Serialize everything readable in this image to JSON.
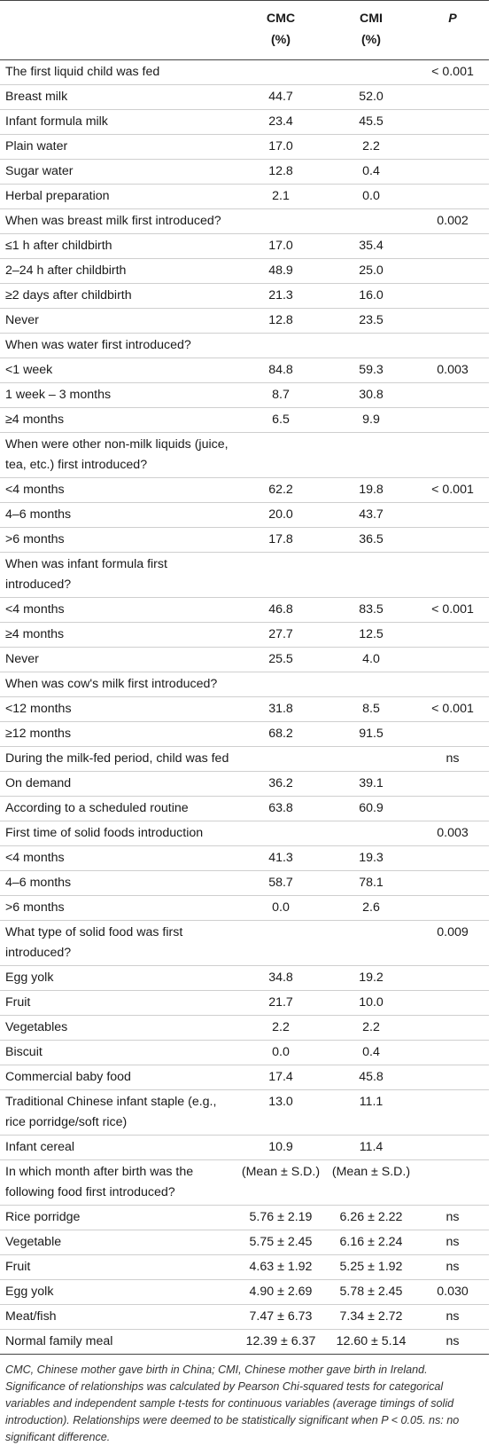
{
  "header": {
    "col_label": "",
    "cmc": "CMC",
    "cmc_unit": "(%)",
    "cmi": "CMI",
    "cmi_unit": "(%)",
    "p": "P"
  },
  "rows": [
    {
      "label": "The first liquid child was fed",
      "cmc": "",
      "cmi": "",
      "p": "< 0.001"
    },
    {
      "label": "Breast milk",
      "cmc": "44.7",
      "cmi": "52.0",
      "p": ""
    },
    {
      "label": "Infant formula milk",
      "cmc": "23.4",
      "cmi": "45.5",
      "p": ""
    },
    {
      "label": "Plain water",
      "cmc": "17.0",
      "cmi": "2.2",
      "p": ""
    },
    {
      "label": "Sugar water",
      "cmc": "12.8",
      "cmi": "0.4",
      "p": ""
    },
    {
      "label": "Herbal preparation",
      "cmc": "2.1",
      "cmi": "0.0",
      "p": ""
    },
    {
      "label": "When was breast milk first introduced?",
      "cmc": "",
      "cmi": "",
      "p": "0.002"
    },
    {
      "label": "≤1 h after childbirth",
      "cmc": "17.0",
      "cmi": "35.4",
      "p": ""
    },
    {
      "label": "2–24 h after childbirth",
      "cmc": "48.9",
      "cmi": "25.0",
      "p": ""
    },
    {
      "label": "≥2 days after childbirth",
      "cmc": "21.3",
      "cmi": "16.0",
      "p": ""
    },
    {
      "label": "Never",
      "cmc": "12.8",
      "cmi": "23.5",
      "p": ""
    },
    {
      "label": "When was water first introduced?",
      "cmc": "",
      "cmi": "",
      "p": ""
    },
    {
      "label": "<1 week",
      "cmc": "84.8",
      "cmi": "59.3",
      "p": "0.003"
    },
    {
      "label": "1 week – 3 months",
      "cmc": "8.7",
      "cmi": "30.8",
      "p": ""
    },
    {
      "label": "≥4 months",
      "cmc": "6.5",
      "cmi": "9.9",
      "p": ""
    },
    {
      "label": "When were other non-milk liquids (juice, tea, etc.) first introduced?",
      "cmc": "",
      "cmi": "",
      "p": ""
    },
    {
      "label": "<4 months",
      "cmc": "62.2",
      "cmi": "19.8",
      "p": "< 0.001"
    },
    {
      "label": "4–6 months",
      "cmc": "20.0",
      "cmi": "43.7",
      "p": ""
    },
    {
      "label": ">6 months",
      "cmc": "17.8",
      "cmi": "36.5",
      "p": ""
    },
    {
      "label": "When was infant formula first introduced?",
      "cmc": "",
      "cmi": "",
      "p": ""
    },
    {
      "label": "<4 months",
      "cmc": "46.8",
      "cmi": "83.5",
      "p": "< 0.001"
    },
    {
      "label": "≥4 months",
      "cmc": "27.7",
      "cmi": "12.5",
      "p": ""
    },
    {
      "label": "Never",
      "cmc": "25.5",
      "cmi": "4.0",
      "p": ""
    },
    {
      "label": "When was cow's milk first introduced?",
      "cmc": "",
      "cmi": "",
      "p": ""
    },
    {
      "label": "<12 months",
      "cmc": "31.8",
      "cmi": "8.5",
      "p": "< 0.001"
    },
    {
      "label": "≥12 months",
      "cmc": "68.2",
      "cmi": "91.5",
      "p": ""
    },
    {
      "label": "During the milk-fed period, child was fed",
      "cmc": "",
      "cmi": "",
      "p": "ns"
    },
    {
      "label": "On demand",
      "cmc": "36.2",
      "cmi": "39.1",
      "p": ""
    },
    {
      "label": "According to a scheduled routine",
      "cmc": "63.8",
      "cmi": "60.9",
      "p": ""
    },
    {
      "label": "First time of solid foods introduction",
      "cmc": "",
      "cmi": "",
      "p": "0.003"
    },
    {
      "label": "<4 months",
      "cmc": "41.3",
      "cmi": "19.3",
      "p": ""
    },
    {
      "label": "4–6 months",
      "cmc": "58.7",
      "cmi": "78.1",
      "p": ""
    },
    {
      "label": ">6 months",
      "cmc": "0.0",
      "cmi": "2.6",
      "p": ""
    },
    {
      "label": "What type of solid food was first introduced?",
      "cmc": "",
      "cmi": "",
      "p": "0.009"
    },
    {
      "label": "Egg yolk",
      "cmc": "34.8",
      "cmi": "19.2",
      "p": ""
    },
    {
      "label": "Fruit",
      "cmc": "21.7",
      "cmi": "10.0",
      "p": ""
    },
    {
      "label": "Vegetables",
      "cmc": "2.2",
      "cmi": "2.2",
      "p": ""
    },
    {
      "label": "Biscuit",
      "cmc": "0.0",
      "cmi": "0.4",
      "p": ""
    },
    {
      "label": "Commercial baby food",
      "cmc": "17.4",
      "cmi": "45.8",
      "p": ""
    },
    {
      "label": "Traditional Chinese infant staple (e.g., rice porridge/soft rice)",
      "cmc": "13.0",
      "cmi": "11.1",
      "p": ""
    },
    {
      "label": "Infant cereal",
      "cmc": "10.9",
      "cmi": "11.4",
      "p": ""
    },
    {
      "label": "In which month after birth was the following food first introduced?",
      "cmc": "(Mean ± S.D.)",
      "cmi": "(Mean ± S.D.)",
      "p": ""
    },
    {
      "label": "Rice porridge",
      "cmc": "5.76 ± 2.19",
      "cmi": "6.26 ± 2.22",
      "p": "ns"
    },
    {
      "label": "Vegetable",
      "cmc": "5.75 ± 2.45",
      "cmi": "6.16 ± 2.24",
      "p": "ns"
    },
    {
      "label": "Fruit",
      "cmc": "4.63 ± 1.92",
      "cmi": "5.25 ± 1.92",
      "p": "ns"
    },
    {
      "label": "Egg yolk",
      "cmc": "4.90 ± 2.69",
      "cmi": "5.78 ± 2.45",
      "p": "0.030"
    },
    {
      "label": "Meat/fish",
      "cmc": "7.47 ± 6.73",
      "cmi": "7.34 ± 2.72",
      "p": "ns"
    },
    {
      "label": "Normal family meal",
      "cmc": "12.39 ± 6.37",
      "cmi": "12.60 ± 5.14",
      "p": "ns"
    }
  ],
  "footnote": "CMC, Chinese mother gave birth in China; CMI, Chinese mother gave birth in Ireland. Significance of relationships was calculated by Pearson Chi-squared tests for categorical variables and independent sample t-tests for continuous variables (average timings of solid introduction). Relationships were deemed to be statistically significant when P < 0.05. ns: no significant difference."
}
